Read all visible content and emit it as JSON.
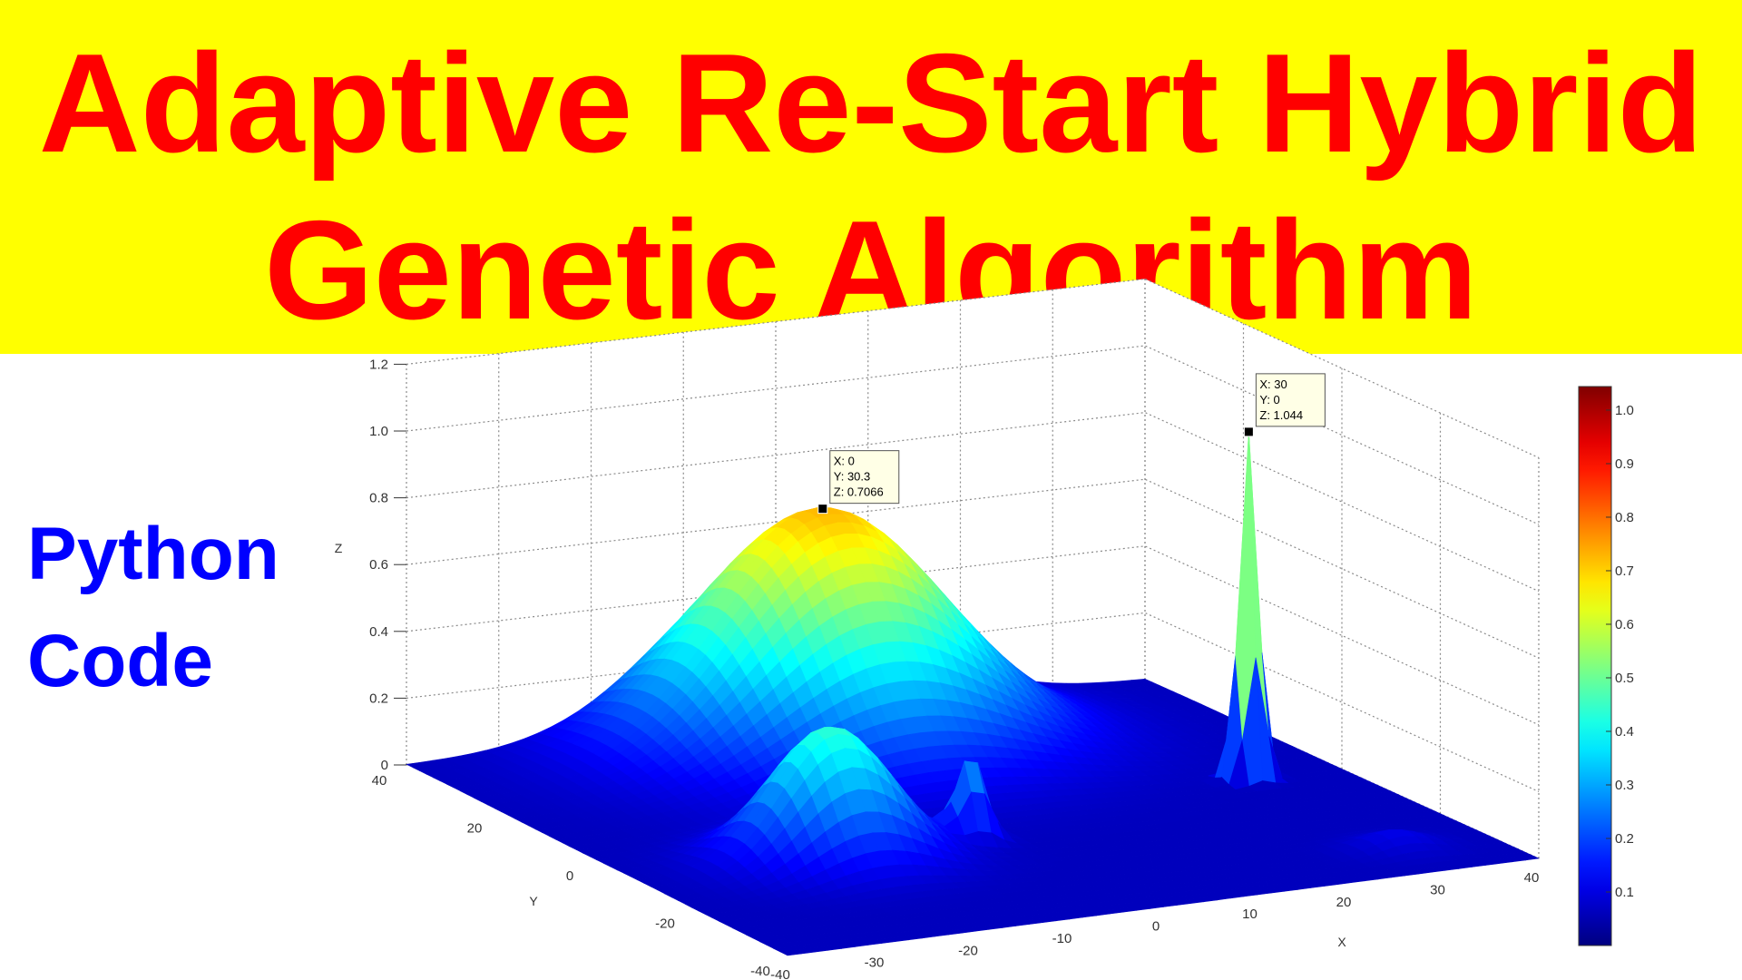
{
  "title": {
    "line1": "Adaptive Re-Start Hybrid",
    "line2": "Genetic Algorithm"
  },
  "subtitle": {
    "line1": "Python",
    "line2": "Code"
  },
  "colors": {
    "banner": "#ffff00",
    "title": "#ff0000",
    "subtitle": "#0000ff"
  },
  "chart_data": {
    "type": "surface",
    "colormap": "jet",
    "title": "",
    "xlabel": "X",
    "ylabel": "Y",
    "zlabel": "Z",
    "xlim": [
      -40,
      40
    ],
    "ylim": [
      -40,
      40
    ],
    "zlim": [
      0,
      1.2
    ],
    "grid": true,
    "x_ticks": [
      "-40",
      "-30",
      "-20",
      "-10",
      "0",
      "10",
      "20",
      "30",
      "40"
    ],
    "y_ticks": [
      "-40",
      "-20",
      "0",
      "20",
      "40"
    ],
    "z_ticks": [
      "0",
      "0.2",
      "0.4",
      "0.6",
      "0.8",
      "1.0",
      "1.2"
    ],
    "colorbar": {
      "range": [
        0,
        1.044
      ],
      "ticks": [
        "0.1",
        "0.2",
        "0.3",
        "0.4",
        "0.5",
        "0.6",
        "0.7",
        "0.8",
        "0.9",
        "1.0"
      ]
    },
    "peaks": [
      {
        "x": 0,
        "y": 30,
        "z": 0.7066,
        "spread": 12
      },
      {
        "x": 30,
        "y": 0,
        "z": 1.044,
        "spread": 1
      },
      {
        "x": -20,
        "y": -10,
        "z": 0.4,
        "spread": 6
      },
      {
        "x": -5,
        "y": -10,
        "z": 0.25,
        "spread": 1.5
      },
      {
        "x": 30,
        "y": -30,
        "z": 0.05,
        "spread": 3
      }
    ],
    "datatips": [
      {
        "lines": [
          "X: 0",
          "Y: 30.3",
          "Z: 0.7066"
        ],
        "x": 0,
        "y": 30.3,
        "z": 0.7066
      },
      {
        "lines": [
          "X: 30",
          "Y: 0",
          "Z: 1.044"
        ],
        "x": 30,
        "y": 0,
        "z": 1.044
      }
    ]
  }
}
